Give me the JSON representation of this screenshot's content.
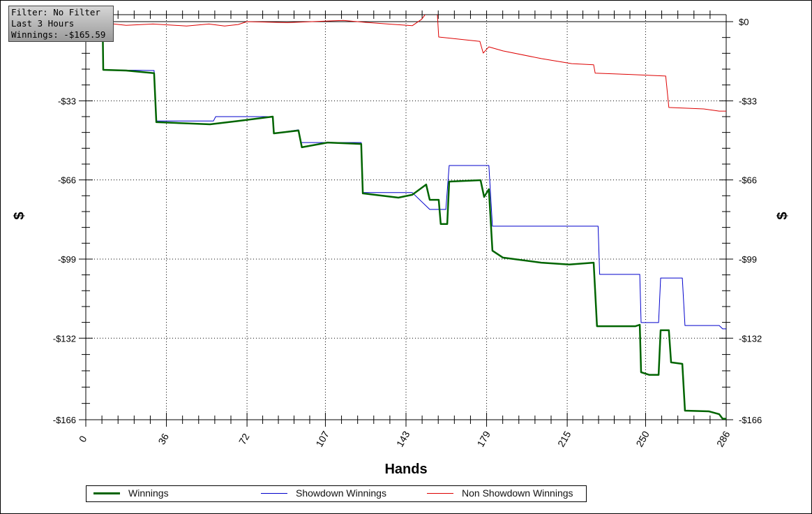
{
  "info_box": {
    "filter": "Filter: No Filter",
    "period": "Last 3 Hours",
    "winnings": "Winnings: -$165.59"
  },
  "chart_data": {
    "type": "line",
    "xlabel": "Hands",
    "ylabel_left": "$",
    "ylabel_right": "$",
    "xlim": [
      0,
      286
    ],
    "ylim": [
      -166,
      2.9
    ],
    "x_ticks": [
      0,
      36,
      72,
      107,
      143,
      179,
      215,
      250,
      286
    ],
    "x_tick_labels": [
      "0",
      "36",
      "72",
      "107",
      "143",
      "179",
      "215",
      "250",
      "286"
    ],
    "y_ticks": [
      0,
      -33,
      -66,
      -99,
      -132,
      -166
    ],
    "y_tick_labels": [
      "$0",
      "-$33",
      "-$66",
      "-$99",
      "-$132",
      "-$166"
    ],
    "grid": true,
    "legend_position": "bottom",
    "series": [
      {
        "name": "Winnings",
        "color": "#006400",
        "points": [
          [
            0,
            0
          ],
          [
            7.5,
            0
          ],
          [
            7.8,
            -20.1
          ],
          [
            18,
            -20.4
          ],
          [
            30.5,
            -21.5
          ],
          [
            31.5,
            -41.9
          ],
          [
            45,
            -42.4
          ],
          [
            55.5,
            -42.8
          ],
          [
            68,
            -41.4
          ],
          [
            83.5,
            -39.6
          ],
          [
            84,
            -46.6
          ],
          [
            95,
            -45.4
          ],
          [
            96.5,
            -52.4
          ],
          [
            108,
            -50.4
          ],
          [
            123,
            -51
          ],
          [
            123.7,
            -71.6
          ],
          [
            139.6,
            -73.4
          ],
          [
            145.8,
            -72.2
          ],
          [
            152,
            -67.9
          ],
          [
            153.6,
            -74.3
          ],
          [
            157.6,
            -74.3
          ],
          [
            158.5,
            -84.4
          ],
          [
            161.4,
            -84.4
          ],
          [
            162.3,
            -66.7
          ],
          [
            176.3,
            -66.1
          ],
          [
            177.9,
            -73.1
          ],
          [
            180,
            -69.9
          ],
          [
            181.6,
            -95.5
          ],
          [
            186.3,
            -98.4
          ],
          [
            203.4,
            -100.5
          ],
          [
            215.9,
            -101.3
          ],
          [
            226.8,
            -100.5
          ],
          [
            228.3,
            -127
          ],
          [
            245.5,
            -127
          ],
          [
            247.4,
            -126.4
          ],
          [
            248,
            -146.2
          ],
          [
            251.7,
            -147.3
          ],
          [
            255.8,
            -147.3
          ],
          [
            256.7,
            -128.7
          ],
          [
            260.4,
            -128.7
          ],
          [
            261.4,
            -142.1
          ],
          [
            266.4,
            -142.7
          ],
          [
            267.6,
            -162.2
          ],
          [
            278.2,
            -162.5
          ],
          [
            282.9,
            -163.7
          ],
          [
            284.4,
            -165.59
          ],
          [
            286,
            -165.59
          ]
        ]
      },
      {
        "name": "Showdown Winnings",
        "color": "#0000cc",
        "points": [
          [
            0,
            0
          ],
          [
            7.5,
            0
          ],
          [
            7.8,
            -20.1
          ],
          [
            30.5,
            -20.4
          ],
          [
            31.5,
            -41.4
          ],
          [
            57,
            -41.4
          ],
          [
            58,
            -39.6
          ],
          [
            83.5,
            -39.6
          ],
          [
            84,
            -46.6
          ],
          [
            95,
            -45.1
          ],
          [
            96,
            -50.4
          ],
          [
            123,
            -50.4
          ],
          [
            123.7,
            -71.3
          ],
          [
            145.8,
            -71.3
          ],
          [
            153.6,
            -78.3
          ],
          [
            160.8,
            -78.3
          ],
          [
            162.3,
            -60
          ],
          [
            180,
            -60
          ],
          [
            181.6,
            -85.3
          ],
          [
            228.8,
            -85.3
          ],
          [
            229.5,
            -105.4
          ],
          [
            247.4,
            -105.4
          ],
          [
            248,
            -125.5
          ],
          [
            255.8,
            -125.5
          ],
          [
            256.7,
            -106.9
          ],
          [
            266.4,
            -106.9
          ],
          [
            267.6,
            -126.7
          ],
          [
            282.9,
            -126.7
          ],
          [
            284.4,
            -128.1
          ],
          [
            286,
            -128.1
          ]
        ]
      },
      {
        "name": "Non Showdown Winnings",
        "color": "#dd0000",
        "points": [
          [
            0,
            0
          ],
          [
            8,
            -0.5
          ],
          [
            18,
            -1.5
          ],
          [
            30,
            -1
          ],
          [
            45,
            -1.8
          ],
          [
            55,
            -1
          ],
          [
            62,
            -1.8
          ],
          [
            68,
            -1.2
          ],
          [
            72,
            0
          ],
          [
            90,
            -0.4
          ],
          [
            107,
            0.2
          ],
          [
            115,
            0.5
          ],
          [
            125,
            -0.3
          ],
          [
            135,
            -1
          ],
          [
            145.8,
            -1.7
          ],
          [
            150,
            1
          ],
          [
            152,
            3.5
          ],
          [
            157,
            3.5
          ],
          [
            157.6,
            -6.4
          ],
          [
            176,
            -8.2
          ],
          [
            177.5,
            -13.1
          ],
          [
            180,
            -10.5
          ],
          [
            186.3,
            -12.2
          ],
          [
            203.4,
            -15.4
          ],
          [
            217,
            -17.5
          ],
          [
            226.8,
            -18
          ],
          [
            227.5,
            -21.5
          ],
          [
            242,
            -22
          ],
          [
            259,
            -22.7
          ],
          [
            260.4,
            -35.8
          ],
          [
            276,
            -36.4
          ],
          [
            282.9,
            -37.3
          ],
          [
            286,
            -37.3
          ]
        ]
      }
    ]
  }
}
